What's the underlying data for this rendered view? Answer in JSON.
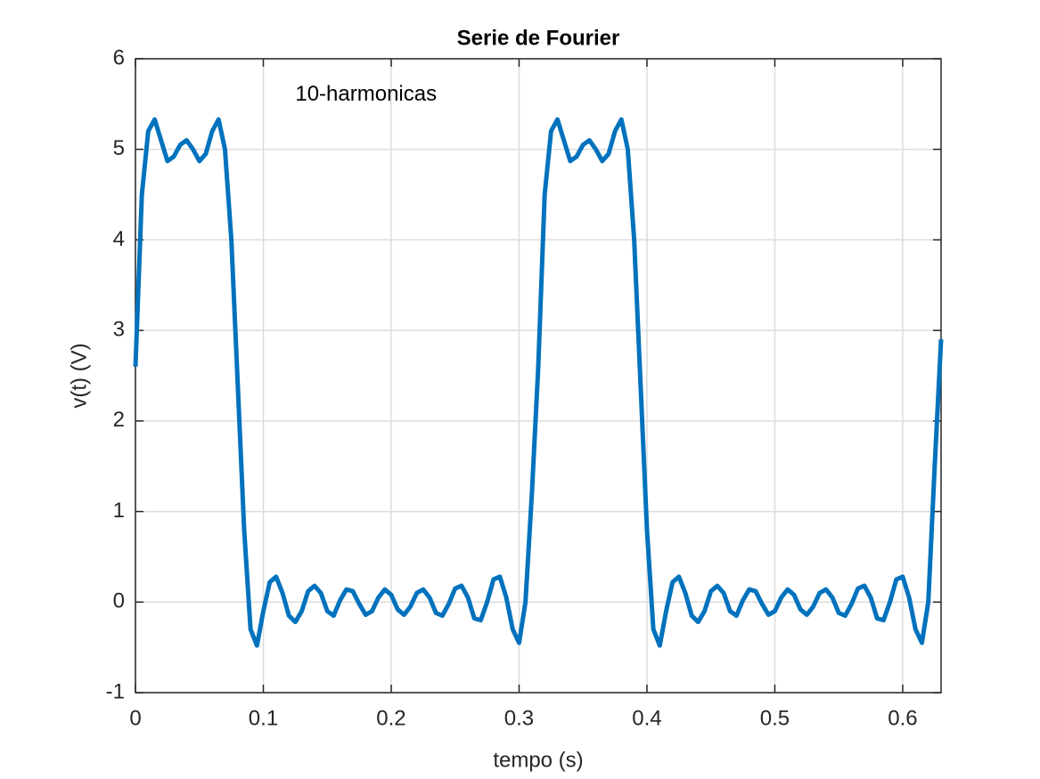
{
  "chart_data": {
    "type": "line",
    "title": "Serie de Fourier",
    "x_label": "tempo (s)",
    "y_label": "v(t) (V)",
    "annotation": "10-harmonicas",
    "annotation_x": 0.125,
    "annotation_y": 5.6,
    "x": [
      0,
      0.005,
      0.01,
      0.015,
      0.02,
      0.025,
      0.03,
      0.035,
      0.04,
      0.045,
      0.05,
      0.055,
      0.06,
      0.065,
      0.07,
      0.075,
      0.08,
      0.085,
      0.09,
      0.095,
      0.1,
      0.105,
      0.11,
      0.115,
      0.12,
      0.125,
      0.13,
      0.135,
      0.14,
      0.145,
      0.15,
      0.155,
      0.16,
      0.165,
      0.17,
      0.175,
      0.18,
      0.185,
      0.19,
      0.195,
      0.2,
      0.205,
      0.21,
      0.215,
      0.22,
      0.225,
      0.23,
      0.235,
      0.24,
      0.245,
      0.25,
      0.255,
      0.26,
      0.265,
      0.27,
      0.275,
      0.28,
      0.285,
      0.29,
      0.295,
      0.3,
      0.305,
      0.31,
      0.315,
      0.32,
      0.325,
      0.33,
      0.335,
      0.34,
      0.345,
      0.35,
      0.355,
      0.36,
      0.365,
      0.37,
      0.375,
      0.38,
      0.385,
      0.39,
      0.395,
      0.4,
      0.405,
      0.41,
      0.415,
      0.42,
      0.425,
      0.43,
      0.435,
      0.44,
      0.445,
      0.45,
      0.455,
      0.46,
      0.465,
      0.47,
      0.475,
      0.48,
      0.485,
      0.49,
      0.495,
      0.5,
      0.505,
      0.51,
      0.515,
      0.52,
      0.525,
      0.53,
      0.535,
      0.54,
      0.545,
      0.55,
      0.555,
      0.56,
      0.565,
      0.57,
      0.575,
      0.58,
      0.585,
      0.59,
      0.595,
      0.6,
      0.605,
      0.61,
      0.615,
      0.62,
      0.625,
      0.63
    ],
    "series": [
      {
        "name": "v(t)",
        "color": "#0072bd",
        "values": [
          2.6,
          4.5,
          5.2,
          5.33,
          5.1,
          4.87,
          4.92,
          5.05,
          5.1,
          5.0,
          4.87,
          4.95,
          5.2,
          5.33,
          5.0,
          4.0,
          2.4,
          0.8,
          -0.3,
          -0.48,
          -0.1,
          0.22,
          0.28,
          0.1,
          -0.15,
          -0.22,
          -0.1,
          0.12,
          0.18,
          0.1,
          -0.1,
          -0.15,
          0.02,
          0.14,
          0.12,
          -0.02,
          -0.14,
          -0.1,
          0.05,
          0.14,
          0.08,
          -0.08,
          -0.14,
          -0.05,
          0.1,
          0.14,
          0.05,
          -0.12,
          -0.15,
          -0.02,
          0.15,
          0.18,
          0.05,
          -0.18,
          -0.2,
          0.0,
          0.25,
          0.28,
          0.05,
          -0.3,
          -0.45,
          0.0,
          1.2,
          2.6,
          4.5,
          5.2,
          5.33,
          5.1,
          4.87,
          4.92,
          5.05,
          5.1,
          5.0,
          4.87,
          4.95,
          5.2,
          5.33,
          5.0,
          4.0,
          2.4,
          0.8,
          -0.3,
          -0.48,
          -0.1,
          0.22,
          0.28,
          0.1,
          -0.15,
          -0.22,
          -0.1,
          0.12,
          0.18,
          0.1,
          -0.1,
          -0.15,
          0.02,
          0.14,
          0.12,
          -0.02,
          -0.14,
          -0.1,
          0.05,
          0.14,
          0.08,
          -0.08,
          -0.14,
          -0.05,
          0.1,
          0.14,
          0.05,
          -0.12,
          -0.15,
          -0.02,
          0.15,
          0.18,
          0.05,
          -0.18,
          -0.2,
          0.0,
          0.25,
          0.28,
          0.05,
          -0.3,
          -0.45,
          0.0,
          1.5,
          2.9
        ]
      }
    ],
    "xlim": [
      0,
      0.63
    ],
    "ylim": [
      -1,
      6
    ],
    "xticks": [
      0,
      0.1,
      0.2,
      0.3,
      0.4,
      0.5,
      0.6
    ],
    "yticks": [
      -1,
      0,
      1,
      2,
      3,
      4,
      5,
      6
    ],
    "grid": true
  }
}
